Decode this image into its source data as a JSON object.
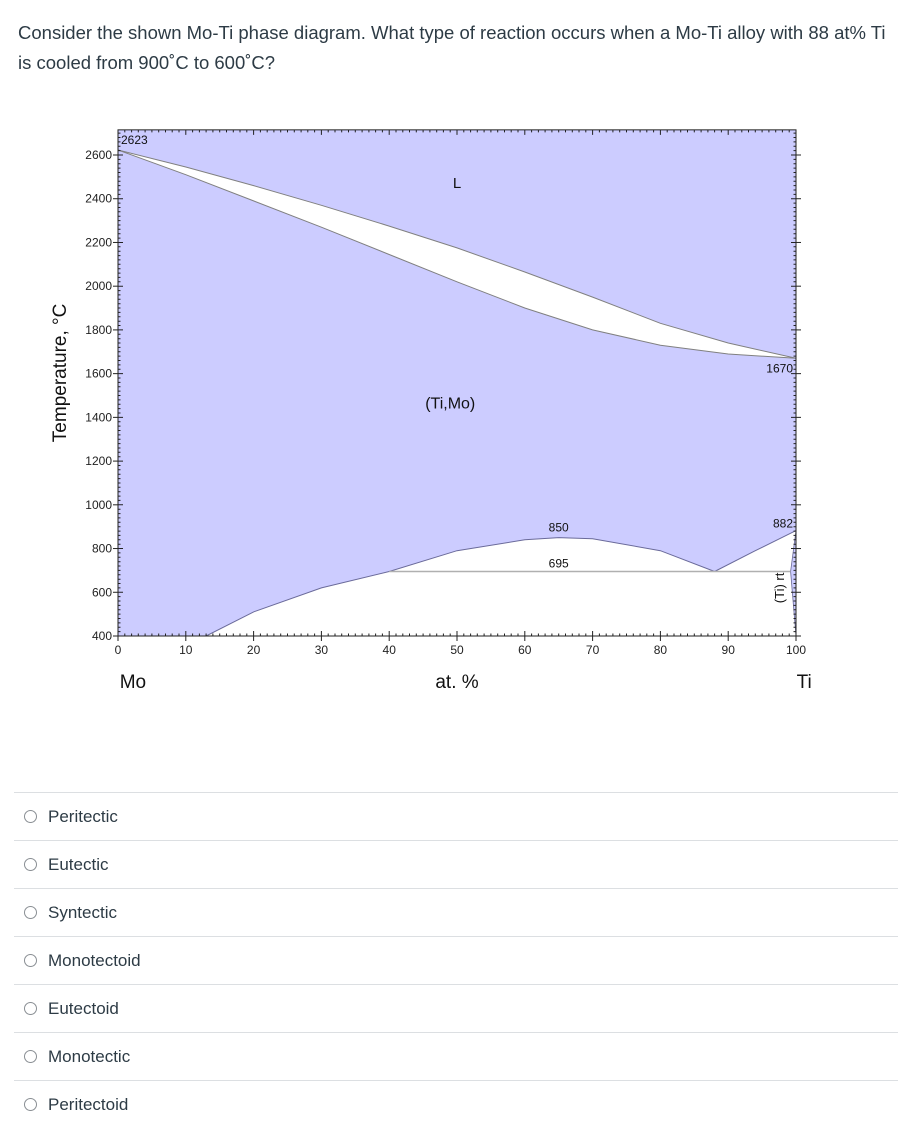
{
  "question": {
    "text": "Consider the shown Mo-Ti phase diagram. What type of reaction occurs when a Mo-Ti alloy with 88 at% Ti is cooled from 900˚C to 600˚C?"
  },
  "chart_data": {
    "type": "phase_diagram",
    "title": "",
    "xlabel": "at. %",
    "ylabel": "Temperature, °C",
    "x_left_element": "Mo",
    "x_right_element": "Ti",
    "xlim": [
      0,
      100
    ],
    "ylim": [
      400,
      2715
    ],
    "x_ticks": [
      0,
      10,
      20,
      30,
      40,
      50,
      60,
      70,
      80,
      90,
      100
    ],
    "y_ticks": [
      400,
      600,
      800,
      1000,
      1200,
      1400,
      1600,
      1800,
      2000,
      2200,
      2400,
      2600
    ],
    "phase_labels": [
      {
        "label": "L",
        "x": 50,
        "y": 2450
      },
      {
        "label": "(Ti,Mo)",
        "x": 49,
        "y": 1440
      },
      {
        "label": "(Ti) rt",
        "x": 97,
        "y": 620,
        "rotation": -90
      }
    ],
    "annotations": [
      {
        "text": "2623",
        "x": 0,
        "y": 2623
      },
      {
        "text": "1670",
        "x": 100,
        "y": 1670
      },
      {
        "text": "850",
        "x": 65,
        "y": 850
      },
      {
        "text": "695",
        "x": 65,
        "y": 695
      },
      {
        "text": "882",
        "x": 100,
        "y": 882
      }
    ],
    "series": [
      {
        "name": "liquidus",
        "points": [
          [
            0,
            2623
          ],
          [
            10,
            2545
          ],
          [
            20,
            2460
          ],
          [
            30,
            2370
          ],
          [
            40,
            2275
          ],
          [
            50,
            2175
          ],
          [
            60,
            2065
          ],
          [
            70,
            1950
          ],
          [
            80,
            1830
          ],
          [
            90,
            1740
          ],
          [
            100,
            1670
          ]
        ]
      },
      {
        "name": "solidus",
        "points": [
          [
            0,
            2623
          ],
          [
            10,
            2510
          ],
          [
            20,
            2390
          ],
          [
            30,
            2270
          ],
          [
            40,
            2145
          ],
          [
            50,
            2020
          ],
          [
            60,
            1900
          ],
          [
            70,
            1800
          ],
          [
            80,
            1730
          ],
          [
            90,
            1690
          ],
          [
            100,
            1670
          ]
        ]
      },
      {
        "name": "miscibility_gap_boundary",
        "points": [
          [
            13,
            400
          ],
          [
            20,
            510
          ],
          [
            30,
            620
          ],
          [
            40,
            695
          ],
          [
            50,
            790
          ],
          [
            60,
            840
          ],
          [
            65,
            850
          ],
          [
            70,
            845
          ],
          [
            80,
            790
          ],
          [
            88,
            695
          ]
        ]
      },
      {
        "name": "ti_beta_transus",
        "points": [
          [
            88,
            695
          ],
          [
            94,
            790
          ],
          [
            100,
            882
          ]
        ]
      },
      {
        "name": "monotectoid_isotherm",
        "points": [
          [
            40,
            695
          ],
          [
            88,
            695
          ]
        ]
      },
      {
        "name": "ti_rt_solvus",
        "points": [
          [
            99.2,
            695
          ],
          [
            100,
            400
          ]
        ]
      }
    ],
    "invariant_points": [
      {
        "type": "melting_point_Mo",
        "x": 0,
        "y": 2623
      },
      {
        "type": "melting_point_Ti",
        "x": 100,
        "y": 1670
      },
      {
        "type": "critical_point",
        "x": 65,
        "y": 850
      },
      {
        "type": "monotectoid",
        "x": 88,
        "y": 695
      },
      {
        "type": "allotropic_Ti",
        "x": 100,
        "y": 882
      }
    ],
    "colors": {
      "single_phase_fill": "#ccccff",
      "two_phase_fill": "#ffffff",
      "line": "#808080"
    },
    "grid": false
  },
  "answers": [
    {
      "label": "Peritectic"
    },
    {
      "label": "Eutectic"
    },
    {
      "label": "Syntectic"
    },
    {
      "label": "Monotectoid"
    },
    {
      "label": "Eutectoid"
    },
    {
      "label": "Monotectic"
    },
    {
      "label": "Peritectoid"
    }
  ]
}
